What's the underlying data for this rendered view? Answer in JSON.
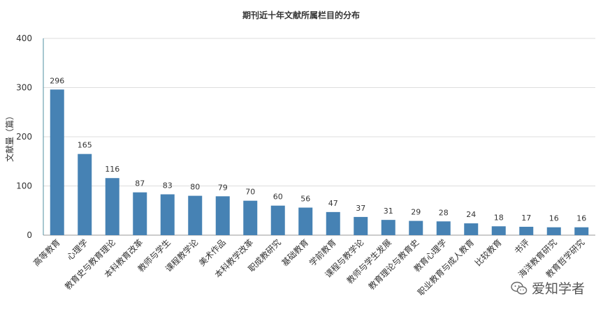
{
  "chart_data": {
    "type": "bar",
    "title": "期刊近十年文献所属栏目的分布",
    "xlabel": "",
    "ylabel": "文献量（篇）",
    "ylim": [
      0,
      400
    ],
    "yticks": [
      0,
      100,
      200,
      300,
      400
    ],
    "grid": true,
    "color": "#4682b4",
    "categories": [
      "高等教育",
      "心理学",
      "教育史与教育理论",
      "本科教育改革",
      "教师与学生",
      "课程教学论",
      "美术作品",
      "本科教学改革",
      "职成教研究",
      "基础教育",
      "学前教育",
      "课程与教学论",
      "教师与学生发展",
      "教育理论与教育史",
      "教育心理学",
      "职业教育与成人教育",
      "比较教育",
      "书评",
      "海洋教育研究",
      "教育哲学研究"
    ],
    "values": [
      296,
      165,
      116,
      87,
      83,
      80,
      79,
      70,
      60,
      56,
      47,
      37,
      31,
      29,
      28,
      24,
      18,
      17,
      16,
      16
    ]
  },
  "watermark": {
    "text": "爱知学者",
    "icon": "wechat-icon"
  }
}
